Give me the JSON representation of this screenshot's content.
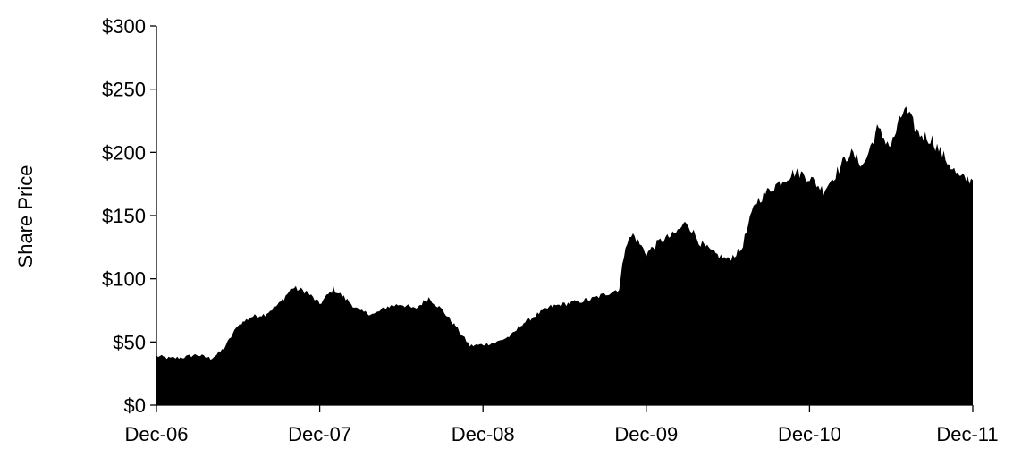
{
  "chart_data": {
    "type": "area",
    "title": "",
    "xlabel": "",
    "ylabel": "Share Price",
    "x_ticks": [
      "Dec-06",
      "Dec-07",
      "Dec-08",
      "Dec-09",
      "Dec-10",
      "Dec-11"
    ],
    "y_ticks": [
      "$0",
      "$50",
      "$100",
      "$150",
      "$200",
      "$250",
      "$300"
    ],
    "ylim": [
      0,
      300
    ],
    "xlim": [
      "2006-12-01",
      "2011-12-01"
    ],
    "grid": false,
    "legend": "none",
    "fill_color": "#000000",
    "series": [
      {
        "x": [
          "2006-12-01",
          "2007-01-01",
          "2007-02-01",
          "2007-03-01",
          "2007-04-01",
          "2007-04-15",
          "2007-05-01",
          "2007-06-01",
          "2007-07-01",
          "2007-08-01",
          "2007-09-01",
          "2007-10-01",
          "2007-11-01",
          "2007-12-01",
          "2008-01-01",
          "2008-02-01",
          "2008-03-01",
          "2008-04-01",
          "2008-05-01",
          "2008-06-01",
          "2008-07-01",
          "2008-08-01",
          "2008-09-01",
          "2008-10-01",
          "2008-11-01",
          "2008-12-01",
          "2009-01-01",
          "2009-02-01",
          "2009-03-01",
          "2009-04-01",
          "2009-05-01",
          "2009-06-01",
          "2009-07-01",
          "2009-08-01",
          "2009-09-01",
          "2009-10-01",
          "2009-10-15",
          "2009-11-01",
          "2009-12-01",
          "2010-01-01",
          "2010-02-01",
          "2010-03-01",
          "2010-04-01",
          "2010-05-01",
          "2010-06-01",
          "2010-07-01",
          "2010-08-01",
          "2010-09-01",
          "2010-10-01",
          "2010-11-01",
          "2010-12-01",
          "2011-01-01",
          "2011-02-01",
          "2011-03-01",
          "2011-04-01",
          "2011-05-01",
          "2011-06-01",
          "2011-07-01",
          "2011-08-01",
          "2011-09-01",
          "2011-10-01",
          "2011-11-01",
          "2011-12-01"
        ],
        "values": [
          39,
          37,
          38,
          40,
          37,
          40,
          45,
          63,
          70,
          72,
          80,
          93,
          90,
          80,
          92,
          83,
          74,
          72,
          78,
          80,
          76,
          85,
          75,
          62,
          47,
          48,
          50,
          55,
          65,
          72,
          78,
          80,
          82,
          84,
          88,
          92,
          127,
          135,
          120,
          130,
          135,
          145,
          128,
          120,
          115,
          123,
          160,
          170,
          178,
          185,
          180,
          170,
          185,
          200,
          190,
          218,
          205,
          235,
          215,
          210,
          195,
          180,
          178
        ]
      }
    ]
  }
}
